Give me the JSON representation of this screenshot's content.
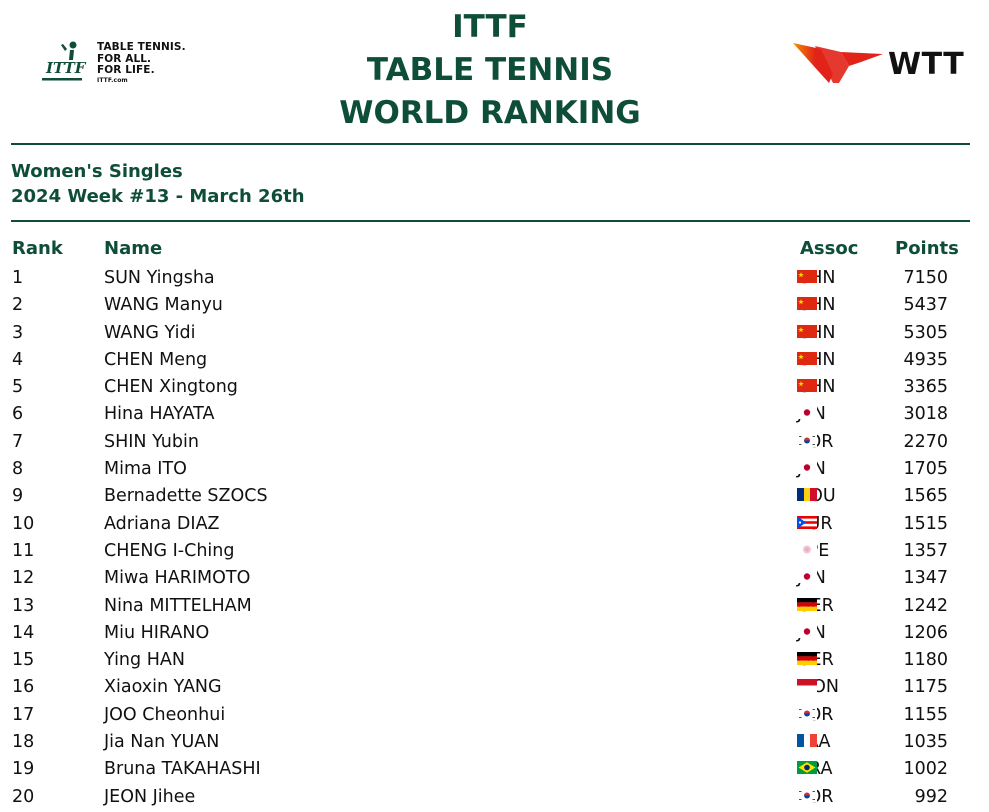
{
  "header": {
    "ittf_tagline": [
      "TABLE TENNIS.",
      "FOR ALL.",
      "FOR LIFE."
    ],
    "ittf_url": "ITTF.com",
    "ittf_mark": "ITTF",
    "title_lines": [
      "ITTF",
      "TABLE TENNIS",
      "WORLD RANKING"
    ],
    "wtt_text": "WTT"
  },
  "subtitle": {
    "event": "Women's Singles",
    "week": "2024 Week #13 - March 26th"
  },
  "columns": {
    "rank": "Rank",
    "name": "Name",
    "assoc": "Assoc",
    "points": "Points"
  },
  "colors": {
    "brand_green": "#0e4d38",
    "wtt_red": "#e2231a",
    "wtt_orange": "#f39200"
  },
  "rankings": [
    {
      "rank": "1",
      "name": "SUN Yingsha",
      "assoc": "CHN",
      "flag": "china-flag-icon",
      "points": "7150"
    },
    {
      "rank": "2",
      "name": "WANG Manyu",
      "assoc": "CHN",
      "flag": "china-flag-icon",
      "points": "5437"
    },
    {
      "rank": "3",
      "name": "WANG Yidi",
      "assoc": "CHN",
      "flag": "china-flag-icon",
      "points": "5305"
    },
    {
      "rank": "4",
      "name": "CHEN Meng",
      "assoc": "CHN",
      "flag": "china-flag-icon",
      "points": "4935"
    },
    {
      "rank": "5",
      "name": "CHEN Xingtong",
      "assoc": "CHN",
      "flag": "china-flag-icon",
      "points": "3365"
    },
    {
      "rank": "6",
      "name": "Hina HAYATA",
      "assoc": "JPN",
      "flag": "japan-flag-icon",
      "points": "3018"
    },
    {
      "rank": "7",
      "name": "SHIN Yubin",
      "assoc": "KOR",
      "flag": "korea-flag-icon",
      "points": "2270"
    },
    {
      "rank": "8",
      "name": "Mima ITO",
      "assoc": "JPN",
      "flag": "japan-flag-icon",
      "points": "1705"
    },
    {
      "rank": "9",
      "name": "Bernadette SZOCS",
      "assoc": "ROU",
      "flag": "romania-flag-icon",
      "points": "1565"
    },
    {
      "rank": "10",
      "name": "Adriana DIAZ",
      "assoc": "PUR",
      "flag": "puerto-rico-flag-icon",
      "points": "1515"
    },
    {
      "rank": "11",
      "name": "CHENG I-Ching",
      "assoc": "TPE",
      "flag": "chinese-taipei-flag-icon",
      "points": "1357"
    },
    {
      "rank": "12",
      "name": "Miwa HARIMOTO",
      "assoc": "JPN",
      "flag": "japan-flag-icon",
      "points": "1347"
    },
    {
      "rank": "13",
      "name": "Nina MITTELHAM",
      "assoc": "GER",
      "flag": "germany-flag-icon",
      "points": "1242"
    },
    {
      "rank": "14",
      "name": "Miu HIRANO",
      "assoc": "JPN",
      "flag": "japan-flag-icon",
      "points": "1206"
    },
    {
      "rank": "15",
      "name": "Ying HAN",
      "assoc": "GER",
      "flag": "germany-flag-icon",
      "points": "1180"
    },
    {
      "rank": "16",
      "name": "Xiaoxin YANG",
      "assoc": "MON",
      "flag": "monaco-flag-icon",
      "points": "1175"
    },
    {
      "rank": "17",
      "name": "JOO Cheonhui",
      "assoc": "KOR",
      "flag": "korea-flag-icon",
      "points": "1155"
    },
    {
      "rank": "18",
      "name": "Jia Nan YUAN",
      "assoc": "FRA",
      "flag": "france-flag-icon",
      "points": "1035"
    },
    {
      "rank": "19",
      "name": "Bruna TAKAHASHI",
      "assoc": "BRA",
      "flag": "brazil-flag-icon",
      "points": "1002"
    },
    {
      "rank": "20",
      "name": "JEON Jihee",
      "assoc": "KOR",
      "flag": "korea-flag-icon",
      "points": "992"
    }
  ]
}
